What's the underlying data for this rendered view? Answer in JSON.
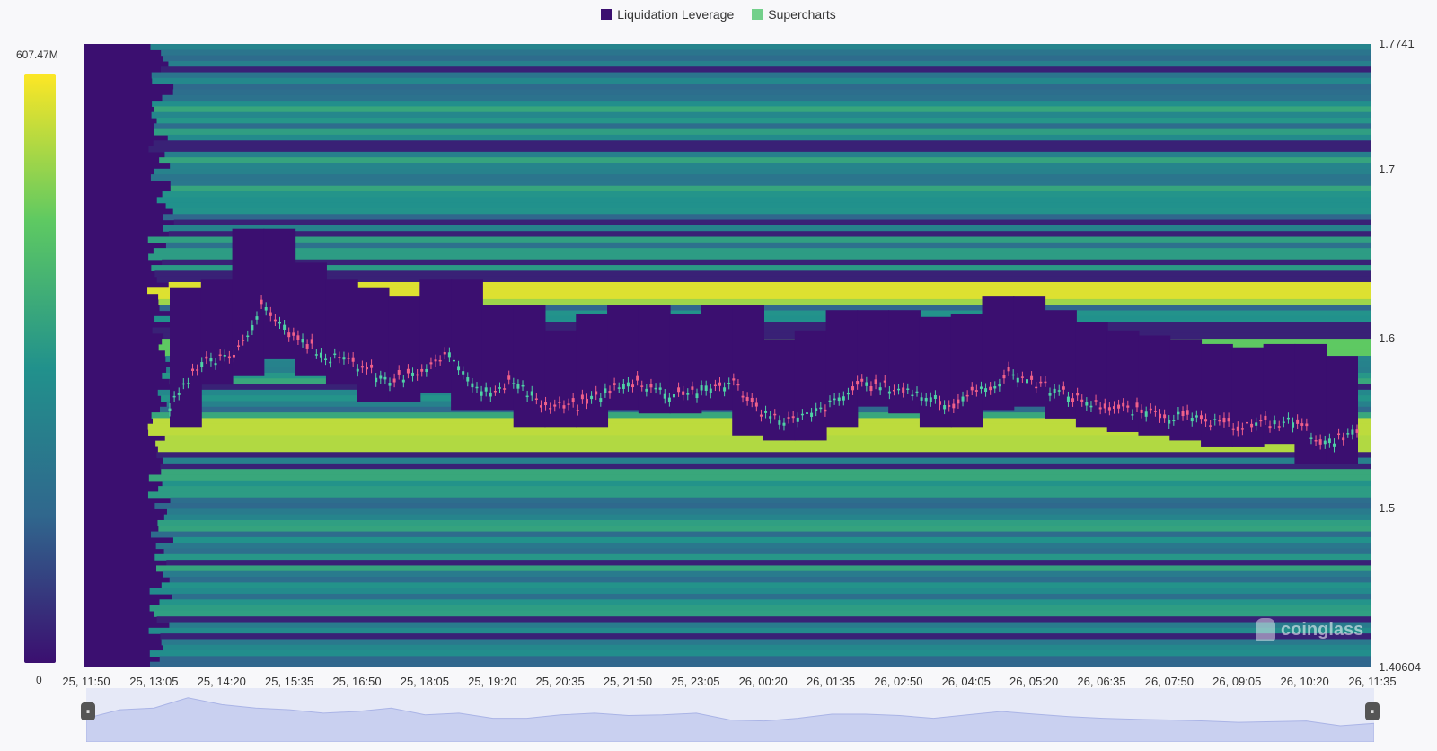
{
  "legend": [
    {
      "label": "Liquidation Leverage",
      "color": "#3b0f70"
    },
    {
      "label": "Supercharts",
      "color": "#73d08b"
    }
  ],
  "colorbar": {
    "max_label": "607.47M",
    "min_label": "0"
  },
  "watermark": {
    "text": "coinglass"
  },
  "chart_data": {
    "type": "heatmap",
    "title": "",
    "y_axis": {
      "min": 1.40604,
      "max": 1.7741,
      "tick_labels": [
        "1.7741",
        "1.7",
        "1.6",
        "1.5",
        "1.40604"
      ],
      "tick_values": [
        1.7741,
        1.7,
        1.6,
        1.5,
        1.40604
      ]
    },
    "x_axis": {
      "tick_labels": [
        "25, 11:50",
        "25, 13:05",
        "25, 14:20",
        "25, 15:35",
        "25, 16:50",
        "25, 18:05",
        "25, 19:20",
        "25, 20:35",
        "25, 21:50",
        "25, 23:05",
        "26, 00:20",
        "26, 01:35",
        "26, 02:50",
        "26, 04:05",
        "26, 05:20",
        "26, 06:35",
        "26, 07:50",
        "26, 09:05",
        "26, 10:20",
        "26, 11:35"
      ]
    },
    "colorscale": {
      "min": 0,
      "max": 607.47,
      "unit": "M",
      "colors": [
        "#3b0f70",
        "#30678d",
        "#21918c",
        "#5ec962",
        "#fde725"
      ]
    },
    "liquidation_bands": [
      {
        "price": 1.629,
        "intensity": 0.95
      },
      {
        "price": 1.624,
        "intensity": 0.85
      },
      {
        "price": 1.595,
        "intensity": 0.75
      },
      {
        "price": 1.548,
        "intensity": 0.9
      },
      {
        "price": 1.538,
        "intensity": 0.88
      },
      {
        "price": 1.52,
        "intensity": 0.6
      },
      {
        "price": 1.51,
        "intensity": 0.55
      },
      {
        "price": 1.65,
        "intensity": 0.55
      },
      {
        "price": 1.68,
        "intensity": 0.5
      }
    ],
    "price_series": {
      "name": "Supercharts",
      "x_index": [
        0,
        1,
        2,
        3,
        4,
        5,
        6,
        7,
        8,
        9,
        10,
        11,
        12,
        13,
        14,
        15,
        16,
        17,
        18,
        19,
        20,
        21,
        22,
        23,
        24,
        25,
        26,
        27,
        28,
        29,
        30,
        31,
        32,
        33,
        34,
        35,
        36,
        37,
        38
      ],
      "close": [
        1.56,
        1.585,
        1.59,
        1.62,
        1.6,
        1.59,
        1.585,
        1.575,
        1.58,
        1.59,
        1.57,
        1.575,
        1.56,
        1.56,
        1.57,
        1.575,
        1.568,
        1.57,
        1.575,
        1.555,
        1.552,
        1.56,
        1.572,
        1.572,
        1.568,
        1.56,
        1.57,
        1.58,
        1.572,
        1.565,
        1.56,
        1.557,
        1.555,
        1.552,
        1.548,
        1.55,
        1.552,
        1.538,
        1.545
      ]
    }
  }
}
